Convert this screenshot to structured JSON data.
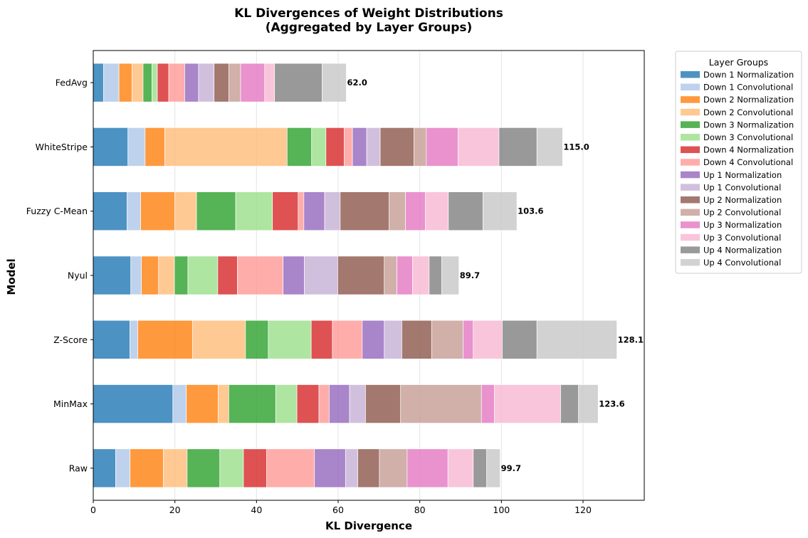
{
  "chart_data": {
    "type": "bar",
    "orientation": "horizontal",
    "stacked": true,
    "title": "KL Divergences of Weight Distributions\n(Aggregated by Layer Groups)",
    "xlabel": "KL Divergence",
    "ylabel": "Model",
    "xlim": [
      0,
      135
    ],
    "xticks": [
      0,
      20,
      40,
      60,
      80,
      100,
      120
    ],
    "grid": "vertical",
    "legend": {
      "title": "Layer Groups",
      "placement": "outside-top-right"
    },
    "categories": [
      "FedAvg",
      "WhiteStripe",
      "Fuzzy C-Mean",
      "Nyul",
      "Z-Score",
      "MinMax",
      "Raw"
    ],
    "totals": [
      62.0,
      115.0,
      103.6,
      89.7,
      128.1,
      123.6,
      99.7
    ],
    "series": [
      {
        "name": "Down 1 Normalization",
        "color": "#1f77b4",
        "values": [
          2.5,
          8.5,
          8.3,
          9.2,
          9.0,
          19.5,
          5.5
        ]
      },
      {
        "name": "Down 1 Convolutional",
        "color": "#aec7e8",
        "values": [
          3.8,
          4.2,
          3.3,
          2.6,
          1.9,
          3.3,
          3.5
        ]
      },
      {
        "name": "Down 2 Normalization",
        "color": "#ff7f0e",
        "values": [
          3.2,
          4.8,
          8.4,
          4.2,
          13.4,
          7.8,
          8.2
        ]
      },
      {
        "name": "Down 2 Convolutional",
        "color": "#ffbb78",
        "values": [
          2.7,
          30.0,
          5.3,
          3.9,
          13.0,
          2.6,
          5.8
        ]
      },
      {
        "name": "Down 3 Normalization",
        "color": "#2ca02c",
        "values": [
          2.2,
          6.0,
          9.6,
          3.3,
          5.6,
          11.5,
          8.0
        ]
      },
      {
        "name": "Down 3 Convolutional",
        "color": "#98df8a",
        "values": [
          1.3,
          3.5,
          9.0,
          7.3,
          10.5,
          5.2,
          5.8
        ]
      },
      {
        "name": "Down 4 Normalization",
        "color": "#d62728",
        "values": [
          2.8,
          4.5,
          6.3,
          4.8,
          5.2,
          5.4,
          5.7
        ]
      },
      {
        "name": "Down 4 Convolutional",
        "color": "#ff9896",
        "values": [
          3.9,
          2.0,
          1.4,
          11.2,
          7.3,
          2.5,
          11.7
        ]
      },
      {
        "name": "Up 1 Normalization",
        "color": "#9467bd",
        "values": [
          3.4,
          3.5,
          5.1,
          5.2,
          5.4,
          5.0,
          7.6
        ]
      },
      {
        "name": "Up 1 Convolutional",
        "color": "#c5b0d5",
        "values": [
          3.8,
          3.3,
          3.8,
          8.2,
          4.3,
          3.9,
          3.0
        ]
      },
      {
        "name": "Up 2 Normalization",
        "color": "#8c564b",
        "values": [
          3.6,
          8.3,
          12.0,
          11.4,
          7.3,
          8.6,
          5.3
        ]
      },
      {
        "name": "Up 2 Convolutional",
        "color": "#c49c94",
        "values": [
          2.9,
          3.0,
          4.0,
          3.1,
          7.7,
          19.8,
          6.8
        ]
      },
      {
        "name": "Up 3 Normalization",
        "color": "#e377c2",
        "values": [
          5.9,
          7.8,
          4.9,
          3.8,
          2.5,
          3.2,
          10.0
        ]
      },
      {
        "name": "Up 3 Convolutional",
        "color": "#f7b6d2",
        "values": [
          2.4,
          10.0,
          5.6,
          4.1,
          7.1,
          16.2,
          6.2
        ]
      },
      {
        "name": "Up 4 Normalization",
        "color": "#7f7f7f",
        "values": [
          11.7,
          9.3,
          8.5,
          3.1,
          8.5,
          4.4,
          3.3
        ]
      },
      {
        "name": "Up 4 Convolutional",
        "color": "#c7c7c7",
        "values": [
          5.9,
          6.3,
          8.3,
          4.2,
          19.6,
          4.8,
          3.3
        ]
      }
    ]
  }
}
